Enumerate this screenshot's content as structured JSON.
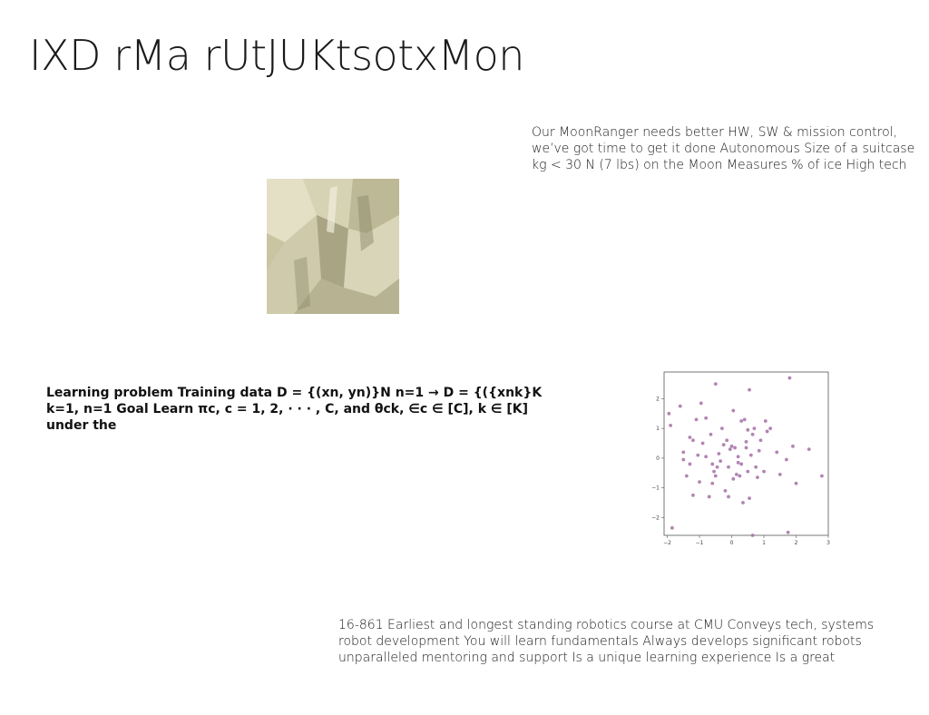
{
  "slide": {
    "title": "IXD rMa rUtJUKtsotxMon",
    "paragraph_right": "Our MoonRanger needs better HW, SW & mission control, we’ve got time to get it done Autonomous Size of a suitcase kg < 30 N (7 lbs) on the Moon Measures % of ice High tech",
    "paragraph_bold": "Learning problem Training data D = {(xn, yn)}N n=1 → D = {({xnk}K k=1, n=1 Goal Learn πc, c = 1, 2, · · · , C, and θck, ∈c ∈ [C], k ∈ [K] under the",
    "paragraph_bottom": "16-861 Earliest and longest standing robotics course at CMU Conveys tech, systems robot development You will learn fundamentals Always develops significant robots unparalleled mentoring and support Is a unique learning experience Is a great"
  },
  "picture": {
    "icon": "abstract-image-icon",
    "colors": {
      "base": "#c9c4a2",
      "light": "#e3e0c6",
      "shadow": "#a9a584",
      "dark": "#8e8b6e"
    }
  },
  "chart_data": {
    "type": "scatter",
    "xlim": [
      -2.1,
      3.0
    ],
    "ylim": [
      -2.6,
      2.9
    ],
    "x_ticks": [
      -2,
      -1,
      0,
      1,
      2,
      3
    ],
    "y_ticks": [
      2,
      1,
      0,
      -1,
      -2
    ],
    "x_tick_labels": [
      "−2",
      "−1",
      "0",
      "1",
      "2",
      "3"
    ],
    "y_tick_labels": [
      "2",
      "1",
      "0",
      "−1",
      "−2"
    ],
    "grid": false,
    "point_color": "#a46fa6",
    "series": [
      {
        "x": [
          -1.95,
          -1.9,
          -1.85,
          -1.6,
          -1.5,
          -1.4,
          -1.3,
          -1.2,
          -1.1,
          -1.05,
          -1.0,
          -0.95,
          -0.9,
          -0.8,
          -0.7,
          -0.65,
          -0.6,
          -0.55,
          -0.5,
          -0.45,
          -0.4,
          -0.35,
          -0.3,
          -0.2,
          -0.15,
          -0.1,
          -0.05,
          0.0,
          0.05,
          0.1,
          0.15,
          0.2,
          0.25,
          0.3,
          0.35,
          0.4,
          0.45,
          0.5,
          0.55,
          0.6,
          0.65,
          0.7,
          0.75,
          0.8,
          0.9,
          1.0,
          1.1,
          1.2,
          1.4,
          1.5,
          1.7,
          1.8,
          1.9,
          2.0,
          2.4,
          2.8,
          -1.5,
          -1.2,
          -0.8,
          -0.5,
          0.3,
          0.45,
          0.55,
          0.65,
          0.05,
          -0.25,
          0.85,
          1.75,
          0.5,
          -0.6,
          -1.3,
          -0.1,
          0.2,
          1.05
        ],
        "y": [
          1.5,
          1.1,
          -2.35,
          1.75,
          0.2,
          -0.6,
          -0.2,
          0.6,
          1.3,
          0.1,
          -0.8,
          1.85,
          0.5,
          1.35,
          -1.3,
          0.8,
          -0.2,
          -0.45,
          2.5,
          -0.3,
          0.15,
          -0.1,
          1.0,
          -1.1,
          0.6,
          -0.3,
          0.3,
          0.4,
          1.6,
          0.35,
          -0.55,
          0.05,
          -0.6,
          -0.2,
          -1.5,
          1.3,
          0.55,
          -0.45,
          2.3,
          0.1,
          0.8,
          1.0,
          -0.3,
          -0.65,
          0.6,
          -0.45,
          0.9,
          1.0,
          0.2,
          -0.55,
          -0.05,
          2.7,
          0.4,
          -0.85,
          0.3,
          -0.6,
          -0.05,
          -1.25,
          0.05,
          -0.6,
          1.25,
          0.35,
          -1.35,
          -2.6,
          -0.7,
          0.45,
          0.25,
          -2.5,
          0.95,
          -0.85,
          0.7,
          -1.3,
          -0.15,
          1.25
        ]
      }
    ]
  }
}
